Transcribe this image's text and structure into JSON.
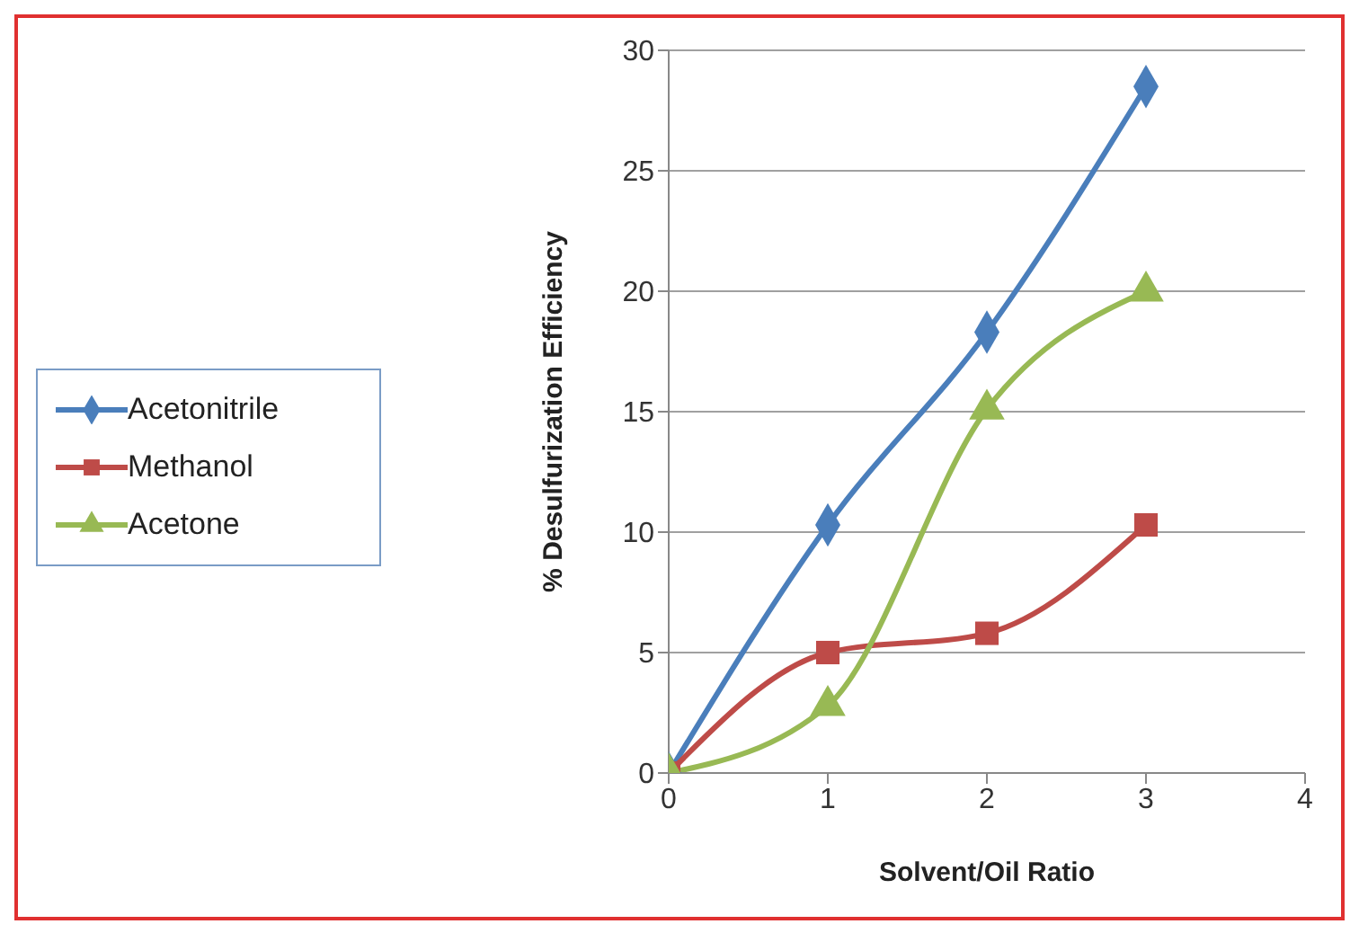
{
  "chart_data": {
    "type": "line",
    "xlabel": "Solvent/Oil Ratio",
    "ylabel": "% Desulfurization Efficiency",
    "x": [
      0,
      1,
      2,
      3
    ],
    "series": [
      {
        "name": "Acetonitrile",
        "color": "#4a7ebb",
        "values": [
          0,
          10.3,
          18.3,
          28.5
        ],
        "marker": "diamond"
      },
      {
        "name": "Methanol",
        "color": "#be4b48",
        "values": [
          0,
          5,
          5.8,
          10.3
        ],
        "marker": "square"
      },
      {
        "name": "Acetone",
        "color": "#98b954",
        "values": [
          0,
          2.8,
          15.1,
          20
        ],
        "marker": "triangle"
      }
    ],
    "xlim": [
      0,
      4
    ],
    "xticks": [
      0,
      1,
      2,
      3,
      4
    ],
    "ylim": [
      0,
      30
    ],
    "yticks": [
      0,
      5,
      10,
      15,
      20,
      25,
      30
    ],
    "grid": "y",
    "legend": "left",
    "line_style": "solid"
  }
}
